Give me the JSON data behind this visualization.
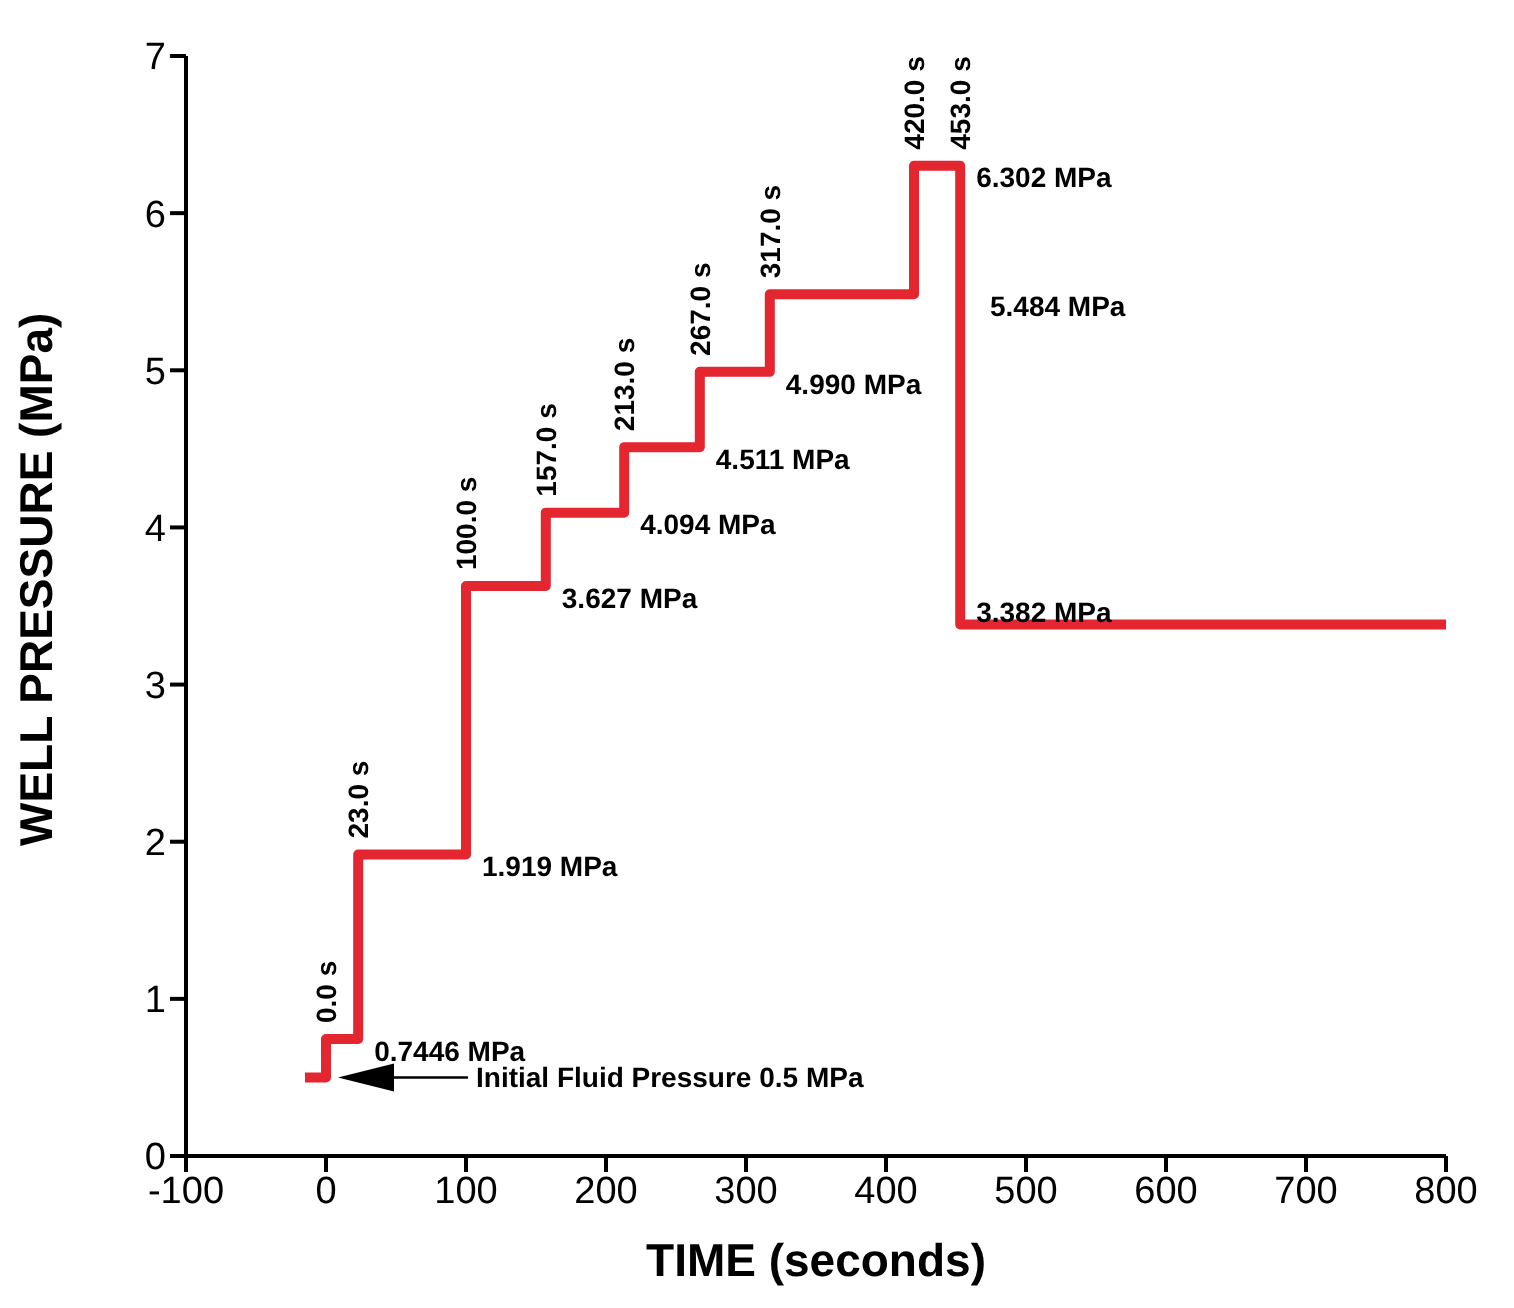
{
  "chart_data": {
    "type": "step",
    "xlabel": "TIME (seconds)",
    "ylabel": "WELL PRESSURE (MPa)",
    "x": [
      -15,
      0,
      23,
      100,
      157,
      213,
      267,
      317,
      420,
      453,
      800
    ],
    "values": [
      0.5,
      0.7446,
      1.919,
      3.627,
      4.094,
      4.511,
      4.99,
      5.484,
      6.302,
      3.382,
      3.382
    ],
    "color": "#e3262f",
    "xlim": [
      -100,
      800
    ],
    "ylim": [
      0,
      7
    ],
    "xticks": [
      -100,
      0,
      100,
      200,
      300,
      400,
      500,
      600,
      700,
      800
    ],
    "yticks": [
      0,
      1,
      2,
      3,
      4,
      5,
      6,
      7
    ],
    "marker": "none",
    "line_style": "solid",
    "annotations": [
      {
        "text": "0.0 s",
        "x": 0,
        "y": 0.7446
      },
      {
        "text": "23.0 s",
        "x": 23,
        "y": 1.919
      },
      {
        "text": "100.0 s",
        "x": 100,
        "y": 3.627
      },
      {
        "text": "157.0 s",
        "x": 157,
        "y": 4.094
      },
      {
        "text": "213.0 s",
        "x": 213,
        "y": 4.511
      },
      {
        "text": "267.0 s",
        "x": 267,
        "y": 4.99
      },
      {
        "text": "317.0 s",
        "x": 317,
        "y": 5.484
      },
      {
        "text": "420.0 s",
        "x": 420,
        "y": 6.302
      },
      {
        "text": "453.0 s",
        "x": 453,
        "y": 6.302
      },
      {
        "text": "0.7446 MPa",
        "x": 23,
        "y": 0.7446
      },
      {
        "text": "1.919 MPa",
        "x": 100,
        "y": 1.919
      },
      {
        "text": "3.627 MPa",
        "x": 157,
        "y": 3.627
      },
      {
        "text": "4.094 MPa",
        "x": 213,
        "y": 4.094
      },
      {
        "text": "4.511 MPa",
        "x": 267,
        "y": 4.511
      },
      {
        "text": "4.990 MPa",
        "x": 317,
        "y": 4.99
      },
      {
        "text": "5.484 MPa",
        "x": 420,
        "y": 5.484
      },
      {
        "text": "6.302 MPa",
        "x": 453,
        "y": 6.302
      },
      {
        "text": "3.382 MPa",
        "x": 453,
        "y": 3.382
      },
      "Initial Fluid Pressure 0.5 MPa"
    ]
  }
}
